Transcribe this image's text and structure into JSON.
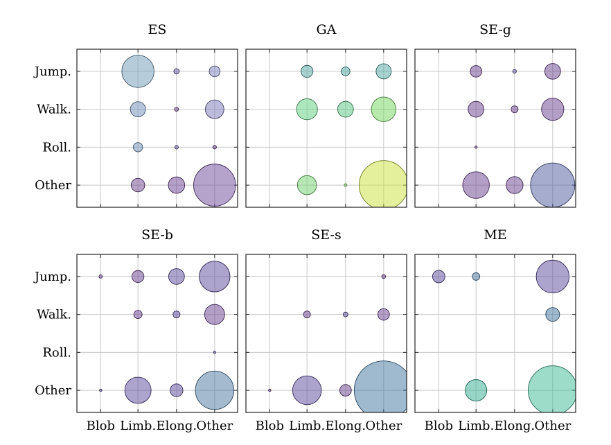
{
  "chart_data": {
    "type": "scatter",
    "subtype": "bubble-grid",
    "x_categories": [
      "Blob",
      "Limb.",
      "Elong.",
      "Other"
    ],
    "y_categories": [
      "Jump.",
      "Walk.",
      "Roll.",
      "Other"
    ],
    "grid": true,
    "panels": [
      {
        "title": "ES",
        "points": [
          {
            "x": "Limb.",
            "y": "Jump.",
            "size": 540,
            "color": "#6f9ab8"
          },
          {
            "x": "Elong.",
            "y": "Jump.",
            "size": 15,
            "color": "#6c5aa8"
          },
          {
            "x": "Other",
            "y": "Jump.",
            "size": 60,
            "color": "#7b83bd"
          },
          {
            "x": "Limb.",
            "y": "Walk.",
            "size": 120,
            "color": "#6f8fb8"
          },
          {
            "x": "Elong.",
            "y": "Walk.",
            "size": 8,
            "color": "#6a3f8f"
          },
          {
            "x": "Other",
            "y": "Walk.",
            "size": 180,
            "color": "#7b78b8"
          },
          {
            "x": "Limb.",
            "y": "Roll.",
            "size": 45,
            "color": "#6f8fb8"
          },
          {
            "x": "Elong.",
            "y": "Roll.",
            "size": 7,
            "color": "#6c5aa8"
          },
          {
            "x": "Other",
            "y": "Roll.",
            "size": 7,
            "color": "#6a3f8f"
          },
          {
            "x": "Limb.",
            "y": "Other",
            "size": 95,
            "color": "#70458f"
          },
          {
            "x": "Elong.",
            "y": "Other",
            "size": 140,
            "color": "#6a4191"
          },
          {
            "x": "Other",
            "y": "Other",
            "size": 920,
            "color": "#6d4799"
          }
        ]
      },
      {
        "title": "GA",
        "points": [
          {
            "x": "Limb.",
            "y": "Jump.",
            "size": 75,
            "color": "#4fa6a2"
          },
          {
            "x": "Elong.",
            "y": "Jump.",
            "size": 40,
            "color": "#4fa6a2"
          },
          {
            "x": "Other",
            "y": "Jump.",
            "size": 120,
            "color": "#4fa6a2"
          },
          {
            "x": "Limb.",
            "y": "Walk.",
            "size": 230,
            "color": "#5ccf7e"
          },
          {
            "x": "Elong.",
            "y": "Walk.",
            "size": 130,
            "color": "#55c480"
          },
          {
            "x": "Other",
            "y": "Walk.",
            "size": 315,
            "color": "#72d45c"
          },
          {
            "x": "Limb.",
            "y": "Other",
            "size": 190,
            "color": "#6fd06a"
          },
          {
            "x": "Elong.",
            "y": "Other",
            "size": 4,
            "color": "#72d45c"
          },
          {
            "x": "Other",
            "y": "Other",
            "size": 1250,
            "color": "#c9e23a"
          }
        ]
      },
      {
        "title": "SE-g",
        "points": [
          {
            "x": "Limb.",
            "y": "Jump.",
            "size": 70,
            "color": "#6a3f8f"
          },
          {
            "x": "Elong.",
            "y": "Jump.",
            "size": 7,
            "color": "#6c5aa8"
          },
          {
            "x": "Other",
            "y": "Jump.",
            "size": 130,
            "color": "#6a3f8f"
          },
          {
            "x": "Limb.",
            "y": "Walk.",
            "size": 130,
            "color": "#6a3f8f"
          },
          {
            "x": "Elong.",
            "y": "Walk.",
            "size": 25,
            "color": "#6a3f8f"
          },
          {
            "x": "Other",
            "y": "Walk.",
            "size": 260,
            "color": "#6a3f8f"
          },
          {
            "x": "Limb.",
            "y": "Roll.",
            "size": 3,
            "color": "#6a3f8f"
          },
          {
            "x": "Limb.",
            "y": "Other",
            "size": 370,
            "color": "#6a3f8f"
          },
          {
            "x": "Elong.",
            "y": "Other",
            "size": 150,
            "color": "#6a3f8f"
          },
          {
            "x": "Other",
            "y": "Other",
            "size": 1020,
            "color": "#4d5a9c"
          }
        ]
      },
      {
        "title": "SE-b",
        "points": [
          {
            "x": "Blob",
            "y": "Jump.",
            "size": 6,
            "color": "#6a3f8f"
          },
          {
            "x": "Limb.",
            "y": "Jump.",
            "size": 75,
            "color": "#6a3f8f"
          },
          {
            "x": "Elong.",
            "y": "Jump.",
            "size": 130,
            "color": "#5a4a9c"
          },
          {
            "x": "Other",
            "y": "Jump.",
            "size": 490,
            "color": "#5a4a9c"
          },
          {
            "x": "Limb.",
            "y": "Walk.",
            "size": 35,
            "color": "#6a3f8f"
          },
          {
            "x": "Elong.",
            "y": "Walk.",
            "size": 25,
            "color": "#5a4a9c"
          },
          {
            "x": "Other",
            "y": "Walk.",
            "size": 210,
            "color": "#6a3f8f"
          },
          {
            "x": "Other",
            "y": "Roll.",
            "size": 3,
            "color": "#5a4a9c"
          },
          {
            "x": "Blob",
            "y": "Other",
            "size": 3,
            "color": "#5a4a9c"
          },
          {
            "x": "Limb.",
            "y": "Other",
            "size": 360,
            "color": "#5a4a9c"
          },
          {
            "x": "Elong.",
            "y": "Other",
            "size": 85,
            "color": "#5a4a9c"
          },
          {
            "x": "Other",
            "y": "Other",
            "size": 770,
            "color": "#4a78a0"
          }
        ]
      },
      {
        "title": "SE-s",
        "points": [
          {
            "x": "Other",
            "y": "Jump.",
            "size": 8,
            "color": "#6a3f8f"
          },
          {
            "x": "Limb.",
            "y": "Walk.",
            "size": 25,
            "color": "#6a3f8f"
          },
          {
            "x": "Elong.",
            "y": "Walk.",
            "size": 12,
            "color": "#5a4a9c"
          },
          {
            "x": "Other",
            "y": "Walk.",
            "size": 70,
            "color": "#6a3f8f"
          },
          {
            "x": "Blob",
            "y": "Other",
            "size": 3,
            "color": "#6a3f8f"
          },
          {
            "x": "Limb.",
            "y": "Other",
            "size": 430,
            "color": "#5a4a9c"
          },
          {
            "x": "Elong.",
            "y": "Other",
            "size": 70,
            "color": "#6a3f8f"
          },
          {
            "x": "Other",
            "y": "Other",
            "size": 1800,
            "color": "#3f74a0"
          }
        ]
      },
      {
        "title": "ME",
        "points": [
          {
            "x": "Blob",
            "y": "Jump.",
            "size": 80,
            "color": "#5a4a9c"
          },
          {
            "x": "Limb.",
            "y": "Jump.",
            "size": 30,
            "color": "#4a78a0"
          },
          {
            "x": "Other",
            "y": "Jump.",
            "size": 560,
            "color": "#5a4a9c"
          },
          {
            "x": "Other",
            "y": "Walk.",
            "size": 100,
            "color": "#3f74a0"
          },
          {
            "x": "Limb.",
            "y": "Other",
            "size": 240,
            "color": "#2fae8e"
          },
          {
            "x": "Other",
            "y": "Other",
            "size": 1250,
            "color": "#3cb991"
          }
        ]
      }
    ]
  }
}
